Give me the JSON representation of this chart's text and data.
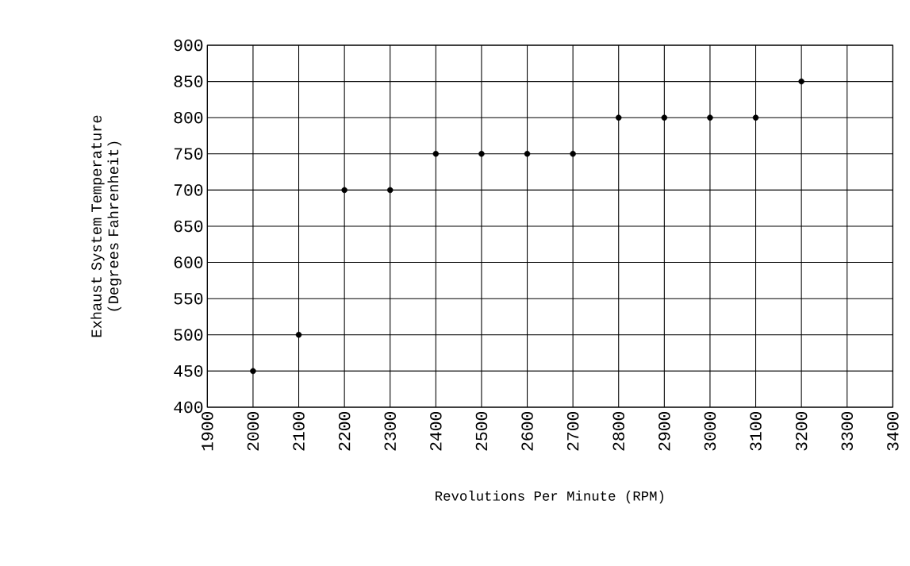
{
  "chart_data": {
    "type": "scatter",
    "xlabel": "Revolutions Per Minute (RPM)",
    "ylabel": "Exhaust System Temperature (Degrees Fahrenheit)",
    "x": [
      2000,
      2100,
      2200,
      2300,
      2400,
      2500,
      2600,
      2700,
      2800,
      2900,
      3000,
      3100,
      3200
    ],
    "values": [
      450,
      500,
      700,
      700,
      750,
      750,
      750,
      750,
      800,
      800,
      800,
      800,
      850
    ],
    "color": "#000000",
    "marker": "circle",
    "grid": true,
    "xlim": [
      1900,
      3400
    ],
    "xticks": [
      1900,
      2000,
      2100,
      2200,
      2300,
      2400,
      2500,
      2600,
      2700,
      2800,
      2900,
      3000,
      3100,
      3200,
      3300,
      3400
    ],
    "ylim": [
      400,
      900
    ],
    "yticks": [
      400,
      450,
      500,
      550,
      600,
      650,
      700,
      750,
      800,
      850,
      900
    ]
  }
}
